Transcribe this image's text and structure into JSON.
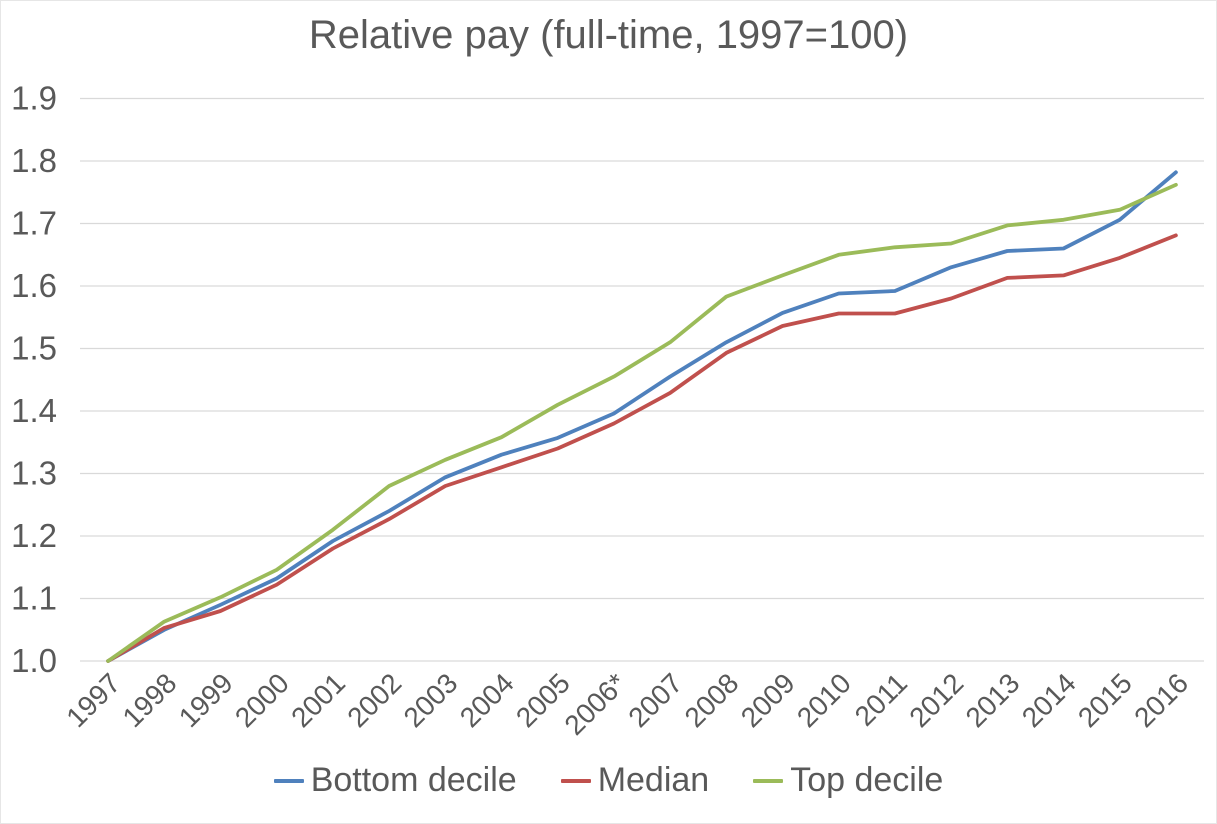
{
  "chart_data": {
    "type": "line",
    "title": "Relative pay (full-time, 1997=100)",
    "categories": [
      "1997",
      "1998",
      "1999",
      "2000",
      "2001",
      "2002",
      "2003",
      "2004",
      "2005",
      "2006*",
      "2007",
      "2008",
      "2009",
      "2010",
      "2011",
      "2012",
      "2013",
      "2014",
      "2015",
      "2016"
    ],
    "series": [
      {
        "name": "Bottom decile",
        "color": "#4F81BD",
        "values": [
          1.0,
          1.05,
          1.09,
          1.132,
          1.192,
          1.24,
          1.294,
          1.33,
          1.357,
          1.396,
          1.455,
          1.51,
          1.557,
          1.588,
          1.592,
          1.63,
          1.656,
          1.66,
          1.706,
          1.782
        ]
      },
      {
        "name": "Median",
        "color": "#C0504D",
        "values": [
          1.0,
          1.053,
          1.08,
          1.122,
          1.18,
          1.227,
          1.28,
          1.31,
          1.34,
          1.38,
          1.429,
          1.493,
          1.536,
          1.556,
          1.556,
          1.58,
          1.613,
          1.617,
          1.645,
          1.681
        ]
      },
      {
        "name": "Top decile",
        "color": "#9BBB59",
        "values": [
          1.0,
          1.063,
          1.102,
          1.146,
          1.21,
          1.28,
          1.322,
          1.358,
          1.41,
          1.455,
          1.51,
          1.583,
          1.617,
          1.65,
          1.662,
          1.668,
          1.697,
          1.706,
          1.722,
          1.762
        ]
      }
    ],
    "xlabel": "",
    "ylabel": "",
    "ylim": [
      1.0,
      1.9
    ],
    "ytick_step": 0.1,
    "ytick_labels": [
      "1.0",
      "1.1",
      "1.2",
      "1.3",
      "1.4",
      "1.5",
      "1.6",
      "1.7",
      "1.8",
      "1.9"
    ],
    "grid": true,
    "legend_position": "bottom"
  },
  "styles": {
    "text_color": "#595959",
    "grid_color": "#D9D9D9",
    "background": "#FFFFFF"
  }
}
